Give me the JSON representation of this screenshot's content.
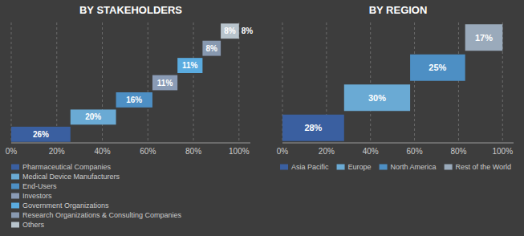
{
  "chart_data": [
    {
      "type": "waterfall",
      "title": "BY STAKEHOLDERS",
      "orientation": "horizontal",
      "categories": [
        "Pharmaceutical Companies",
        "Medical Device Manufacturers",
        "End-Users",
        "Investors",
        "Government Organizations",
        "Research Organizations & Consulting Companies",
        "Others"
      ],
      "values": [
        26,
        20,
        16,
        11,
        11,
        8,
        8
      ],
      "value_labels": [
        "26%",
        "20%",
        "16%",
        "11%",
        "11%",
        "8%",
        "8%"
      ],
      "colors": [
        "#3a5fa0",
        "#6aaad4",
        "#4d8fc4",
        "#8a9bb5",
        "#5aabdf",
        "#8899b0",
        "#b8c4cc"
      ],
      "xlim": [
        0,
        105
      ],
      "xticks": [
        {
          "value": 0,
          "label": "0%"
        },
        {
          "value": 20,
          "label": "20%"
        },
        {
          "value": 40,
          "label": "40%"
        },
        {
          "value": 60,
          "label": "60%"
        },
        {
          "value": 80,
          "label": "80%"
        },
        {
          "value": 100,
          "label": "100%"
        }
      ],
      "grid": true,
      "data_labels": true,
      "tick_labels": "x",
      "legend": "bottom"
    },
    {
      "type": "waterfall",
      "title": "BY REGION",
      "orientation": "horizontal",
      "categories": [
        "Asia Pacific",
        "Europe",
        "North America",
        "Rest of the World"
      ],
      "values": [
        28,
        30,
        25,
        17
      ],
      "value_labels": [
        "28%",
        "30%",
        "25%",
        "17%"
      ],
      "colors": [
        "#3a5fa0",
        "#6aaad4",
        "#4d8fc4",
        "#9aaabb"
      ],
      "xlim": [
        0,
        105
      ],
      "xticks": [
        {
          "value": 0,
          "label": "0%"
        },
        {
          "value": 20,
          "label": "20%"
        },
        {
          "value": 40,
          "label": "40%"
        },
        {
          "value": 60,
          "label": "60%"
        },
        {
          "value": 80,
          "label": "80%"
        },
        {
          "value": 100,
          "label": "100%"
        }
      ],
      "grid": true,
      "data_labels": true,
      "tick_labels": "x",
      "legend": "bottom"
    }
  ]
}
